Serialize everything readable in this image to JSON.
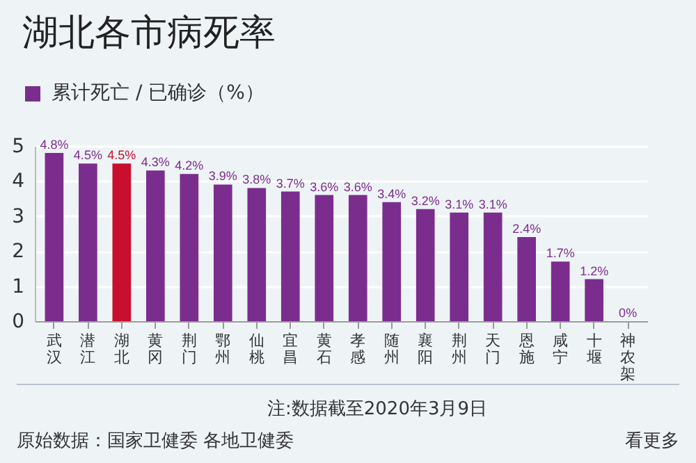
{
  "chart_data": {
    "type": "bar",
    "title": "湖北各市病死率",
    "categories": [
      "武汉",
      "潜江",
      "湖北",
      "黄冈",
      "荆门",
      "鄂州",
      "仙桃",
      "宜昌",
      "黄石",
      "孝感",
      "随州",
      "襄阳",
      "荆州",
      "天门",
      "恩施",
      "咸宁",
      "十堰",
      "神农架"
    ],
    "series": [
      {
        "name": "累计死亡 / 已确诊（%）",
        "color": "#7b2d8e",
        "colors": [
          "#7b2d8e",
          "#7b2d8e",
          "#c8102e",
          "#7b2d8e",
          "#7b2d8e",
          "#7b2d8e",
          "#7b2d8e",
          "#7b2d8e",
          "#7b2d8e",
          "#7b2d8e",
          "#7b2d8e",
          "#7b2d8e",
          "#7b2d8e",
          "#7b2d8e",
          "#7b2d8e",
          "#7b2d8e",
          "#7b2d8e",
          "#7b2d8e"
        ],
        "values": [
          4.8,
          4.5,
          4.5,
          4.3,
          4.2,
          3.9,
          3.8,
          3.7,
          3.6,
          3.6,
          3.4,
          3.2,
          3.1,
          3.1,
          2.4,
          1.7,
          1.2,
          0
        ],
        "value_labels": [
          "4.8%",
          "4.5%",
          "4.5%",
          "4.3%",
          "4.2%",
          "3.9%",
          "3.8%",
          "3.7%",
          "3.6%",
          "3.6%",
          "3.4%",
          "3.2%",
          "3.1%",
          "3.1%",
          "2.4%",
          "1.7%",
          "1.2%",
          "0%"
        ]
      }
    ],
    "ylim": [
      0,
      5
    ],
    "yticks": [
      0,
      1,
      2,
      3,
      4,
      5
    ],
    "grid": "y",
    "legend": "top left",
    "annotations": [
      "注:数据截至2020年3月9日",
      "原始数据：国家卫健委 各地卫健委",
      "看更多"
    ]
  }
}
